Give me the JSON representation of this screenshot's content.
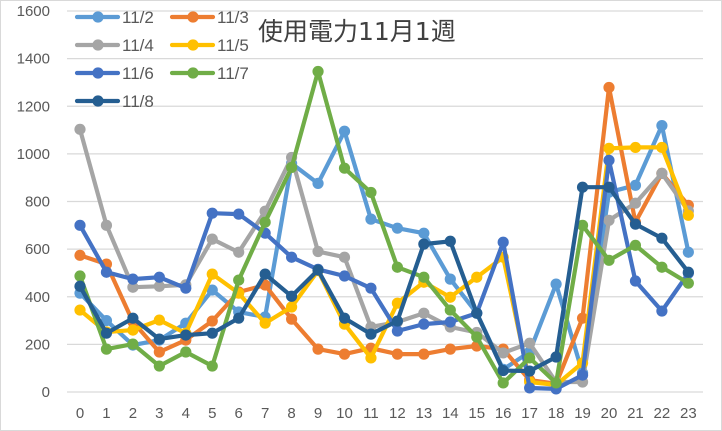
{
  "chart_data": {
    "type": "line",
    "title": "使用電力11月1週",
    "xlabel": "",
    "ylabel": "",
    "ylim": [
      0,
      1600
    ],
    "ytick_step": 200,
    "yticks": [
      "0",
      "200",
      "400",
      "600",
      "800",
      "1000",
      "1200",
      "1400",
      "1600"
    ],
    "grid": true,
    "legend_position": "top-left (inside plot)",
    "categories": [
      "0",
      "1",
      "2",
      "3",
      "4",
      "5",
      "6",
      "7",
      "8",
      "9",
      "10",
      "11",
      "12",
      "13",
      "14",
      "15",
      "16",
      "17",
      "18",
      "19",
      "20",
      "21",
      "22",
      "23"
    ],
    "series": [
      {
        "name": "11/2",
        "color": "#5B9BD5",
        "values": [
          415,
          300,
          197,
          218,
          289,
          428,
          336,
          315,
          960,
          876,
          1095,
          726,
          688,
          667,
          474,
          331,
          95,
          168,
          453,
          80,
          839,
          868,
          1119,
          587
        ]
      },
      {
        "name": "11/3",
        "color": "#ED7D31",
        "values": [
          574,
          537,
          295,
          168,
          218,
          298,
          420,
          449,
          306,
          180,
          159,
          184,
          159,
          159,
          180,
          193,
          180,
          50,
          35,
          310,
          1279,
          713,
          918,
          784
        ]
      },
      {
        "name": "11/4",
        "color": "#A5A5A5",
        "values": [
          1103,
          700,
          440,
          444,
          450,
          642,
          587,
          759,
          985,
          590,
          566,
          273,
          294,
          331,
          273,
          250,
          164,
          205,
          42,
          42,
          721,
          793,
          918,
          760
        ]
      },
      {
        "name": "11/5",
        "color": "#FFC000",
        "values": [
          344,
          252,
          260,
          302,
          247,
          495,
          415,
          289,
          357,
          510,
          285,
          143,
          373,
          461,
          398,
          482,
          566,
          42,
          30,
          122,
          1023,
          1027,
          1027,
          742
        ]
      },
      {
        "name": "11/6",
        "color": "#4472C4",
        "values": [
          700,
          503,
          474,
          482,
          436,
          751,
          747,
          667,
          566,
          515,
          487,
          436,
          256,
          285,
          294,
          331,
          629,
          17,
          13,
          71,
          973,
          466,
          340,
          499
        ]
      },
      {
        "name": "11/7",
        "color": "#70AD47",
        "values": [
          487,
          180,
          201,
          109,
          168,
          109,
          470,
          713,
          943,
          1346,
          940,
          838,
          524,
          482,
          344,
          231,
          38,
          143,
          38,
          700,
          553,
          616,
          524,
          457
        ]
      },
      {
        "name": "11/8",
        "color": "#255E91",
        "values": [
          444,
          247,
          310,
          222,
          239,
          247,
          310,
          495,
          402,
          512,
          310,
          243,
          298,
          621,
          633,
          331,
          90,
          88,
          147,
          860,
          860,
          705,
          646,
          503
        ]
      }
    ]
  },
  "legend": {
    "items": [
      {
        "label": "11/2"
      },
      {
        "label": "11/3"
      },
      {
        "label": "11/4"
      },
      {
        "label": "11/5"
      },
      {
        "label": "11/6"
      },
      {
        "label": "11/7"
      },
      {
        "label": "11/8"
      }
    ]
  },
  "colors": {
    "grid": "#d9d9d9",
    "axis_text": "#595959",
    "title_text": "#404040"
  }
}
